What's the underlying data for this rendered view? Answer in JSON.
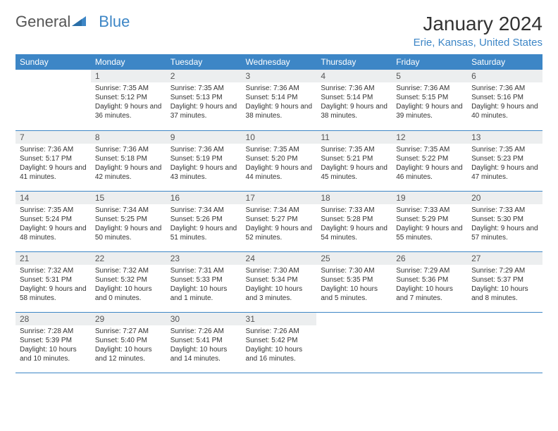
{
  "logo": {
    "text_general": "General",
    "text_blue": "Blue"
  },
  "header": {
    "month_title": "January 2024",
    "location": "Erie, Kansas, United States"
  },
  "colors": {
    "header_bg": "#3d86c6",
    "header_text": "#ffffff",
    "daynum_bg": "#eceeef",
    "row_border": "#3d86c6",
    "body_text": "#333333",
    "brand_blue": "#3d86c6",
    "logo_gray": "#555555"
  },
  "weekdays": [
    "Sunday",
    "Monday",
    "Tuesday",
    "Wednesday",
    "Thursday",
    "Friday",
    "Saturday"
  ],
  "cells": [
    {
      "day": "",
      "sunrise": "",
      "sunset": "",
      "daylight": ""
    },
    {
      "day": "1",
      "sunrise": "Sunrise: 7:35 AM",
      "sunset": "Sunset: 5:12 PM",
      "daylight": "Daylight: 9 hours and 36 minutes."
    },
    {
      "day": "2",
      "sunrise": "Sunrise: 7:35 AM",
      "sunset": "Sunset: 5:13 PM",
      "daylight": "Daylight: 9 hours and 37 minutes."
    },
    {
      "day": "3",
      "sunrise": "Sunrise: 7:36 AM",
      "sunset": "Sunset: 5:14 PM",
      "daylight": "Daylight: 9 hours and 38 minutes."
    },
    {
      "day": "4",
      "sunrise": "Sunrise: 7:36 AM",
      "sunset": "Sunset: 5:14 PM",
      "daylight": "Daylight: 9 hours and 38 minutes."
    },
    {
      "day": "5",
      "sunrise": "Sunrise: 7:36 AM",
      "sunset": "Sunset: 5:15 PM",
      "daylight": "Daylight: 9 hours and 39 minutes."
    },
    {
      "day": "6",
      "sunrise": "Sunrise: 7:36 AM",
      "sunset": "Sunset: 5:16 PM",
      "daylight": "Daylight: 9 hours and 40 minutes."
    },
    {
      "day": "7",
      "sunrise": "Sunrise: 7:36 AM",
      "sunset": "Sunset: 5:17 PM",
      "daylight": "Daylight: 9 hours and 41 minutes."
    },
    {
      "day": "8",
      "sunrise": "Sunrise: 7:36 AM",
      "sunset": "Sunset: 5:18 PM",
      "daylight": "Daylight: 9 hours and 42 minutes."
    },
    {
      "day": "9",
      "sunrise": "Sunrise: 7:36 AM",
      "sunset": "Sunset: 5:19 PM",
      "daylight": "Daylight: 9 hours and 43 minutes."
    },
    {
      "day": "10",
      "sunrise": "Sunrise: 7:35 AM",
      "sunset": "Sunset: 5:20 PM",
      "daylight": "Daylight: 9 hours and 44 minutes."
    },
    {
      "day": "11",
      "sunrise": "Sunrise: 7:35 AM",
      "sunset": "Sunset: 5:21 PM",
      "daylight": "Daylight: 9 hours and 45 minutes."
    },
    {
      "day": "12",
      "sunrise": "Sunrise: 7:35 AM",
      "sunset": "Sunset: 5:22 PM",
      "daylight": "Daylight: 9 hours and 46 minutes."
    },
    {
      "day": "13",
      "sunrise": "Sunrise: 7:35 AM",
      "sunset": "Sunset: 5:23 PM",
      "daylight": "Daylight: 9 hours and 47 minutes."
    },
    {
      "day": "14",
      "sunrise": "Sunrise: 7:35 AM",
      "sunset": "Sunset: 5:24 PM",
      "daylight": "Daylight: 9 hours and 48 minutes."
    },
    {
      "day": "15",
      "sunrise": "Sunrise: 7:34 AM",
      "sunset": "Sunset: 5:25 PM",
      "daylight": "Daylight: 9 hours and 50 minutes."
    },
    {
      "day": "16",
      "sunrise": "Sunrise: 7:34 AM",
      "sunset": "Sunset: 5:26 PM",
      "daylight": "Daylight: 9 hours and 51 minutes."
    },
    {
      "day": "17",
      "sunrise": "Sunrise: 7:34 AM",
      "sunset": "Sunset: 5:27 PM",
      "daylight": "Daylight: 9 hours and 52 minutes."
    },
    {
      "day": "18",
      "sunrise": "Sunrise: 7:33 AM",
      "sunset": "Sunset: 5:28 PM",
      "daylight": "Daylight: 9 hours and 54 minutes."
    },
    {
      "day": "19",
      "sunrise": "Sunrise: 7:33 AM",
      "sunset": "Sunset: 5:29 PM",
      "daylight": "Daylight: 9 hours and 55 minutes."
    },
    {
      "day": "20",
      "sunrise": "Sunrise: 7:33 AM",
      "sunset": "Sunset: 5:30 PM",
      "daylight": "Daylight: 9 hours and 57 minutes."
    },
    {
      "day": "21",
      "sunrise": "Sunrise: 7:32 AM",
      "sunset": "Sunset: 5:31 PM",
      "daylight": "Daylight: 9 hours and 58 minutes."
    },
    {
      "day": "22",
      "sunrise": "Sunrise: 7:32 AM",
      "sunset": "Sunset: 5:32 PM",
      "daylight": "Daylight: 10 hours and 0 minutes."
    },
    {
      "day": "23",
      "sunrise": "Sunrise: 7:31 AM",
      "sunset": "Sunset: 5:33 PM",
      "daylight": "Daylight: 10 hours and 1 minute."
    },
    {
      "day": "24",
      "sunrise": "Sunrise: 7:30 AM",
      "sunset": "Sunset: 5:34 PM",
      "daylight": "Daylight: 10 hours and 3 minutes."
    },
    {
      "day": "25",
      "sunrise": "Sunrise: 7:30 AM",
      "sunset": "Sunset: 5:35 PM",
      "daylight": "Daylight: 10 hours and 5 minutes."
    },
    {
      "day": "26",
      "sunrise": "Sunrise: 7:29 AM",
      "sunset": "Sunset: 5:36 PM",
      "daylight": "Daylight: 10 hours and 7 minutes."
    },
    {
      "day": "27",
      "sunrise": "Sunrise: 7:29 AM",
      "sunset": "Sunset: 5:37 PM",
      "daylight": "Daylight: 10 hours and 8 minutes."
    },
    {
      "day": "28",
      "sunrise": "Sunrise: 7:28 AM",
      "sunset": "Sunset: 5:39 PM",
      "daylight": "Daylight: 10 hours and 10 minutes."
    },
    {
      "day": "29",
      "sunrise": "Sunrise: 7:27 AM",
      "sunset": "Sunset: 5:40 PM",
      "daylight": "Daylight: 10 hours and 12 minutes."
    },
    {
      "day": "30",
      "sunrise": "Sunrise: 7:26 AM",
      "sunset": "Sunset: 5:41 PM",
      "daylight": "Daylight: 10 hours and 14 minutes."
    },
    {
      "day": "31",
      "sunrise": "Sunrise: 7:26 AM",
      "sunset": "Sunset: 5:42 PM",
      "daylight": "Daylight: 10 hours and 16 minutes."
    },
    {
      "day": "",
      "sunrise": "",
      "sunset": "",
      "daylight": ""
    },
    {
      "day": "",
      "sunrise": "",
      "sunset": "",
      "daylight": ""
    },
    {
      "day": "",
      "sunrise": "",
      "sunset": "",
      "daylight": ""
    }
  ]
}
